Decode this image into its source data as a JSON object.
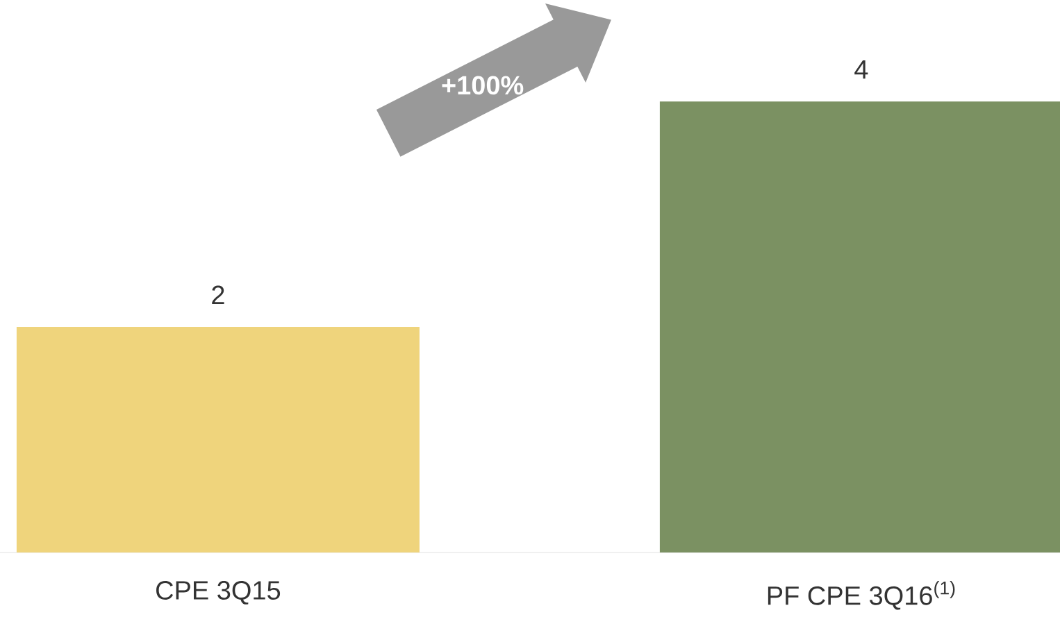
{
  "chart_data": {
    "type": "bar",
    "categories": [
      "CPE 3Q15",
      "PF CPE 3Q16$^{(1)}$"
    ],
    "values": [
      2,
      4
    ],
    "colors": [
      "#efd47c",
      "#7b9162"
    ],
    "data_labels": true,
    "annotations": [
      "+100%"
    ]
  }
}
